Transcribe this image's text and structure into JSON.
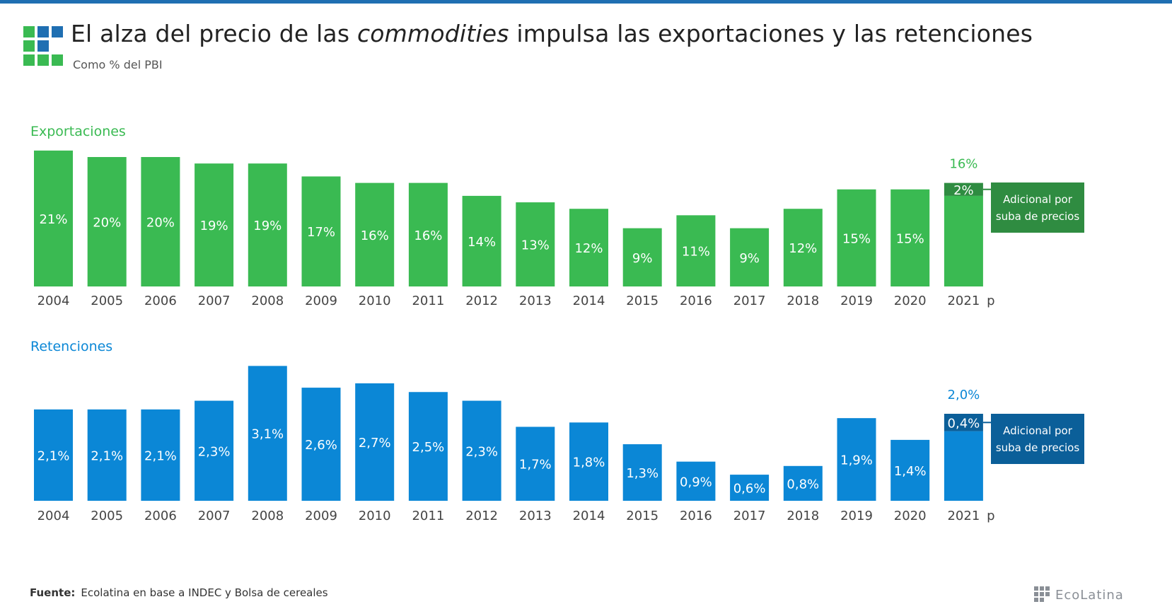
{
  "header": {
    "title_part1": "El alza del precio de las ",
    "title_italic": "commodities",
    "title_part2": " impulsa las exportaciones y las retenciones",
    "subtitle": "Como % del PBI"
  },
  "colors": {
    "top_rule": "#1f6fb2",
    "green": "#3aba52",
    "green_dark": "#2f8c41",
    "blue": "#0b87d6",
    "blue_dark": "#0b5f99",
    "logo_blue": "#1f6fb2",
    "logo_green": "#3aba52"
  },
  "footer": {
    "source_label": "Fuente:",
    "source_text": "Ecolatina en base a INDEC y Bolsa de cereales",
    "brand": "EcoLatina"
  },
  "chart_data": [
    {
      "type": "bar",
      "title": "Exportaciones",
      "categories": [
        "2004",
        "2005",
        "2006",
        "2007",
        "2008",
        "2009",
        "2010",
        "2011",
        "2012",
        "2013",
        "2014",
        "2015",
        "2016",
        "2017",
        "2018",
        "2019",
        "2020",
        "2021 p"
      ],
      "values": [
        21,
        20,
        20,
        19,
        19,
        17,
        16,
        16,
        14,
        13,
        12,
        9,
        11,
        9,
        12,
        15,
        15,
        14
      ],
      "labels": [
        "21%",
        "20%",
        "20%",
        "19%",
        "19%",
        "17%",
        "16%",
        "16%",
        "14%",
        "13%",
        "12%",
        "9%",
        "11%",
        "9%",
        "12%",
        "15%",
        "15%",
        ""
      ],
      "extra": {
        "category": "2021 p",
        "value": 2,
        "label": "2%",
        "total_label": "16%"
      },
      "annotation": {
        "line1": "Adicional por",
        "line2": "suba de precios"
      },
      "unit": "% del PBI"
    },
    {
      "type": "bar",
      "title": "Retenciones",
      "categories": [
        "2004",
        "2005",
        "2006",
        "2007",
        "2008",
        "2009",
        "2010",
        "2011",
        "2012",
        "2013",
        "2014",
        "2015",
        "2016",
        "2017",
        "2018",
        "2019",
        "2020",
        "2021 p"
      ],
      "values": [
        2.1,
        2.1,
        2.1,
        2.3,
        3.1,
        2.6,
        2.7,
        2.5,
        2.3,
        1.7,
        1.8,
        1.3,
        0.9,
        0.6,
        0.8,
        1.9,
        1.4,
        1.6
      ],
      "labels": [
        "2,1%",
        "2,1%",
        "2,1%",
        "2,3%",
        "3,1%",
        "2,6%",
        "2,7%",
        "2,5%",
        "2,3%",
        "1,7%",
        "1,8%",
        "1,3%",
        "0,9%",
        "0,6%",
        "0,8%",
        "1,9%",
        "1,4%",
        ""
      ],
      "extra": {
        "category": "2021 p",
        "value": 0.4,
        "label": "0,4%",
        "total_label": "2,0%"
      },
      "annotation": {
        "line1": "Adicional por",
        "line2": "suba de precios"
      },
      "unit": "% del PBI"
    }
  ]
}
